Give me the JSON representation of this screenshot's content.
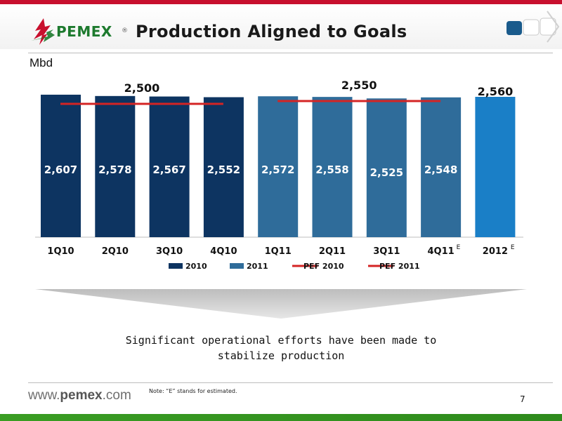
{
  "colors": {
    "top_bar": "#c8102e",
    "bottom_bar": "#3a9d23",
    "logo_red": "#c8102e",
    "logo_green": "#1d7a2e",
    "series_2010": "#0d3461",
    "series_2011": "#2f6c9a",
    "series_2012": "#1a7fc7",
    "pef_line": "#d42424"
  },
  "header": {
    "logo_text": "PEMEX",
    "logo_reg": "®",
    "title": "Production Aligned to Goals",
    "nav_icon": "slide-nav-icon"
  },
  "unit_label": "Mbd",
  "chart_data": {
    "type": "bar",
    "categories": [
      "1Q10",
      "2Q10",
      "3Q10",
      "4Q10",
      "1Q11",
      "2Q11",
      "3Q11",
      "4Q11",
      "2012"
    ],
    "category_superscripts": [
      "",
      "",
      "",
      "",
      "",
      "",
      "",
      "E",
      "E"
    ],
    "values": [
      2607,
      2578,
      2567,
      2552,
      2572,
      2558,
      2525,
      2548,
      2560
    ],
    "value_labels": [
      "2,607",
      "2,578",
      "2,567",
      "2,552",
      "2,572",
      "2,558",
      "2,525",
      "2,548",
      ""
    ],
    "bar_series": [
      "2010",
      "2010",
      "2010",
      "2010",
      "2011",
      "2011",
      "2011",
      "2011",
      "2012"
    ],
    "series": [
      {
        "name": "2010",
        "values": [
          2607,
          2578,
          2567,
          2552,
          null,
          null,
          null,
          null,
          null
        ]
      },
      {
        "name": "2011",
        "values": [
          null,
          null,
          null,
          null,
          2572,
          2558,
          2525,
          2548,
          null
        ]
      }
    ],
    "reference_lines": [
      {
        "name": "PEF 2010",
        "value": 2500,
        "label": "2,500",
        "from": "1Q10",
        "to": "4Q10"
      },
      {
        "name": "PEF 2011",
        "value": 2550,
        "label": "2,550",
        "from": "1Q11",
        "to": "4Q11"
      }
    ],
    "callouts": [
      {
        "category": "2012",
        "label": "2,560"
      }
    ],
    "legend": [
      "2010",
      "2011",
      "PEF 2010",
      "PEF 2011"
    ],
    "legend_position": "bottom",
    "grid": false
  },
  "message": "Significant operational efforts have been made to stabilize production",
  "footer": {
    "url_prefix": "www.",
    "url_brand": "pemex",
    "url_suffix": ".com",
    "note": "Note: “E” stands for estimated.",
    "page_number": "7"
  }
}
